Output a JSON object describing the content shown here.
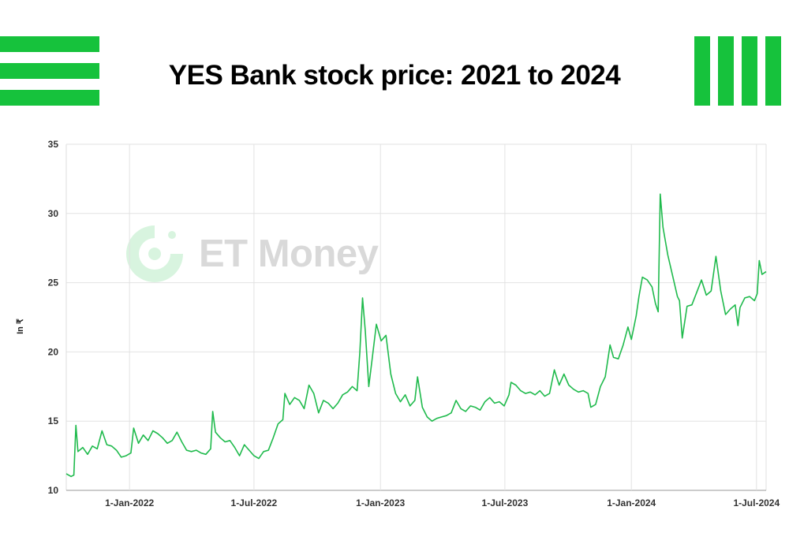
{
  "header": {
    "title": "YES Bank stock price: 2021 to 2024",
    "brand_color": "#16c23c"
  },
  "watermark": {
    "text": "ET Money"
  },
  "chart_data": {
    "type": "line",
    "title": "YES Bank stock price: 2021 to 2024",
    "xlabel": "",
    "ylabel": "In ₹",
    "ylim": [
      10,
      35
    ],
    "yticks": [
      10,
      15,
      20,
      25,
      30,
      35
    ],
    "xlim": [
      "2021-10-01",
      "2024-07-15"
    ],
    "xticks": [
      {
        "date": "2022-01-01",
        "label": "1-Jan-2022"
      },
      {
        "date": "2022-07-01",
        "label": "1-Jul-2022"
      },
      {
        "date": "2023-01-01",
        "label": "1-Jan-2023"
      },
      {
        "date": "2023-07-01",
        "label": "1-Jul-2023"
      },
      {
        "date": "2024-01-01",
        "label": "1-Jan-2024"
      },
      {
        "date": "2024-07-01",
        "label": "1-Jul-2024"
      }
    ],
    "grid": true,
    "line_color": "#1fba4c",
    "series": [
      {
        "points": [
          [
            "2021-10-01",
            11.2
          ],
          [
            "2021-10-08",
            11.0
          ],
          [
            "2021-10-12",
            11.1
          ],
          [
            "2021-10-15",
            14.7
          ],
          [
            "2021-10-18",
            12.8
          ],
          [
            "2021-10-25",
            13.1
          ],
          [
            "2021-11-01",
            12.6
          ],
          [
            "2021-11-08",
            13.2
          ],
          [
            "2021-11-15",
            13.0
          ],
          [
            "2021-11-22",
            14.3
          ],
          [
            "2021-11-29",
            13.3
          ],
          [
            "2021-12-06",
            13.2
          ],
          [
            "2021-12-13",
            12.9
          ],
          [
            "2021-12-20",
            12.4
          ],
          [
            "2021-12-27",
            12.5
          ],
          [
            "2022-01-03",
            12.7
          ],
          [
            "2022-01-07",
            14.5
          ],
          [
            "2022-01-14",
            13.4
          ],
          [
            "2022-01-21",
            14.0
          ],
          [
            "2022-01-28",
            13.6
          ],
          [
            "2022-02-04",
            14.3
          ],
          [
            "2022-02-11",
            14.1
          ],
          [
            "2022-02-18",
            13.8
          ],
          [
            "2022-02-25",
            13.4
          ],
          [
            "2022-03-04",
            13.6
          ],
          [
            "2022-03-11",
            14.2
          ],
          [
            "2022-03-18",
            13.5
          ],
          [
            "2022-03-25",
            12.9
          ],
          [
            "2022-04-01",
            12.8
          ],
          [
            "2022-04-08",
            12.9
          ],
          [
            "2022-04-15",
            12.7
          ],
          [
            "2022-04-22",
            12.6
          ],
          [
            "2022-04-29",
            13.0
          ],
          [
            "2022-05-02",
            15.7
          ],
          [
            "2022-05-06",
            14.2
          ],
          [
            "2022-05-13",
            13.8
          ],
          [
            "2022-05-20",
            13.5
          ],
          [
            "2022-05-27",
            13.6
          ],
          [
            "2022-06-03",
            13.1
          ],
          [
            "2022-06-10",
            12.5
          ],
          [
            "2022-06-17",
            13.3
          ],
          [
            "2022-06-24",
            12.9
          ],
          [
            "2022-07-01",
            12.5
          ],
          [
            "2022-07-08",
            12.3
          ],
          [
            "2022-07-15",
            12.8
          ],
          [
            "2022-07-22",
            12.9
          ],
          [
            "2022-07-29",
            13.8
          ],
          [
            "2022-08-05",
            14.8
          ],
          [
            "2022-08-12",
            15.1
          ],
          [
            "2022-08-15",
            17.0
          ],
          [
            "2022-08-22",
            16.2
          ],
          [
            "2022-08-29",
            16.7
          ],
          [
            "2022-09-05",
            16.5
          ],
          [
            "2022-09-12",
            15.9
          ],
          [
            "2022-09-19",
            17.6
          ],
          [
            "2022-09-26",
            17.0
          ],
          [
            "2022-10-03",
            15.6
          ],
          [
            "2022-10-10",
            16.5
          ],
          [
            "2022-10-17",
            16.3
          ],
          [
            "2022-10-24",
            15.9
          ],
          [
            "2022-10-31",
            16.3
          ],
          [
            "2022-11-07",
            16.9
          ],
          [
            "2022-11-14",
            17.1
          ],
          [
            "2022-11-21",
            17.5
          ],
          [
            "2022-11-28",
            17.2
          ],
          [
            "2022-12-02",
            20.0
          ],
          [
            "2022-12-06",
            23.9
          ],
          [
            "2022-12-10",
            21.5
          ],
          [
            "2022-12-15",
            17.5
          ],
          [
            "2022-12-20",
            19.5
          ],
          [
            "2022-12-26",
            22.0
          ],
          [
            "2023-01-02",
            20.8
          ],
          [
            "2023-01-09",
            21.2
          ],
          [
            "2023-01-16",
            18.4
          ],
          [
            "2023-01-23",
            17.0
          ],
          [
            "2023-01-30",
            16.4
          ],
          [
            "2023-02-06",
            16.9
          ],
          [
            "2023-02-13",
            16.1
          ],
          [
            "2023-02-20",
            16.5
          ],
          [
            "2023-02-24",
            18.2
          ],
          [
            "2023-03-03",
            16.0
          ],
          [
            "2023-03-10",
            15.3
          ],
          [
            "2023-03-17",
            15.0
          ],
          [
            "2023-03-24",
            15.2
          ],
          [
            "2023-03-31",
            15.3
          ],
          [
            "2023-04-07",
            15.4
          ],
          [
            "2023-04-14",
            15.6
          ],
          [
            "2023-04-21",
            16.5
          ],
          [
            "2023-04-28",
            15.9
          ],
          [
            "2023-05-05",
            15.7
          ],
          [
            "2023-05-12",
            16.1
          ],
          [
            "2023-05-19",
            16.0
          ],
          [
            "2023-05-26",
            15.8
          ],
          [
            "2023-06-02",
            16.4
          ],
          [
            "2023-06-09",
            16.7
          ],
          [
            "2023-06-16",
            16.3
          ],
          [
            "2023-06-23",
            16.4
          ],
          [
            "2023-06-30",
            16.1
          ],
          [
            "2023-07-07",
            16.9
          ],
          [
            "2023-07-10",
            17.8
          ],
          [
            "2023-07-17",
            17.6
          ],
          [
            "2023-07-24",
            17.2
          ],
          [
            "2023-07-31",
            17.0
          ],
          [
            "2023-08-07",
            17.1
          ],
          [
            "2023-08-14",
            16.9
          ],
          [
            "2023-08-21",
            17.2
          ],
          [
            "2023-08-28",
            16.8
          ],
          [
            "2023-09-04",
            17.0
          ],
          [
            "2023-09-11",
            18.7
          ],
          [
            "2023-09-18",
            17.6
          ],
          [
            "2023-09-25",
            18.4
          ],
          [
            "2023-10-02",
            17.6
          ],
          [
            "2023-10-09",
            17.3
          ],
          [
            "2023-10-16",
            17.1
          ],
          [
            "2023-10-23",
            17.2
          ],
          [
            "2023-10-30",
            17.0
          ],
          [
            "2023-11-03",
            16.0
          ],
          [
            "2023-11-10",
            16.2
          ],
          [
            "2023-11-17",
            17.5
          ],
          [
            "2023-11-24",
            18.2
          ],
          [
            "2023-12-01",
            20.5
          ],
          [
            "2023-12-06",
            19.6
          ],
          [
            "2023-12-13",
            19.5
          ],
          [
            "2023-12-20",
            20.5
          ],
          [
            "2023-12-27",
            21.8
          ],
          [
            "2024-01-01",
            20.9
          ],
          [
            "2024-01-08",
            22.6
          ],
          [
            "2024-01-12",
            24.0
          ],
          [
            "2024-01-17",
            25.4
          ],
          [
            "2024-01-24",
            25.2
          ],
          [
            "2024-01-31",
            24.7
          ],
          [
            "2024-02-05",
            23.5
          ],
          [
            "2024-02-09",
            22.9
          ],
          [
            "2024-02-12",
            31.4
          ],
          [
            "2024-02-16",
            29.0
          ],
          [
            "2024-02-23",
            27.0
          ],
          [
            "2024-03-01",
            25.5
          ],
          [
            "2024-03-08",
            24.0
          ],
          [
            "2024-03-11",
            23.7
          ],
          [
            "2024-03-15",
            21.0
          ],
          [
            "2024-03-22",
            23.3
          ],
          [
            "2024-03-29",
            23.4
          ],
          [
            "2024-04-05",
            24.3
          ],
          [
            "2024-04-12",
            25.2
          ],
          [
            "2024-04-19",
            24.1
          ],
          [
            "2024-04-26",
            24.4
          ],
          [
            "2024-05-03",
            26.9
          ],
          [
            "2024-05-10",
            24.4
          ],
          [
            "2024-05-17",
            22.7
          ],
          [
            "2024-05-24",
            23.1
          ],
          [
            "2024-05-31",
            23.4
          ],
          [
            "2024-06-04",
            21.9
          ],
          [
            "2024-06-07",
            23.2
          ],
          [
            "2024-06-14",
            23.9
          ],
          [
            "2024-06-21",
            24.0
          ],
          [
            "2024-06-28",
            23.7
          ],
          [
            "2024-07-02",
            24.2
          ],
          [
            "2024-07-05",
            26.6
          ],
          [
            "2024-07-09",
            25.6
          ],
          [
            "2024-07-15",
            25.8
          ]
        ]
      }
    ]
  }
}
